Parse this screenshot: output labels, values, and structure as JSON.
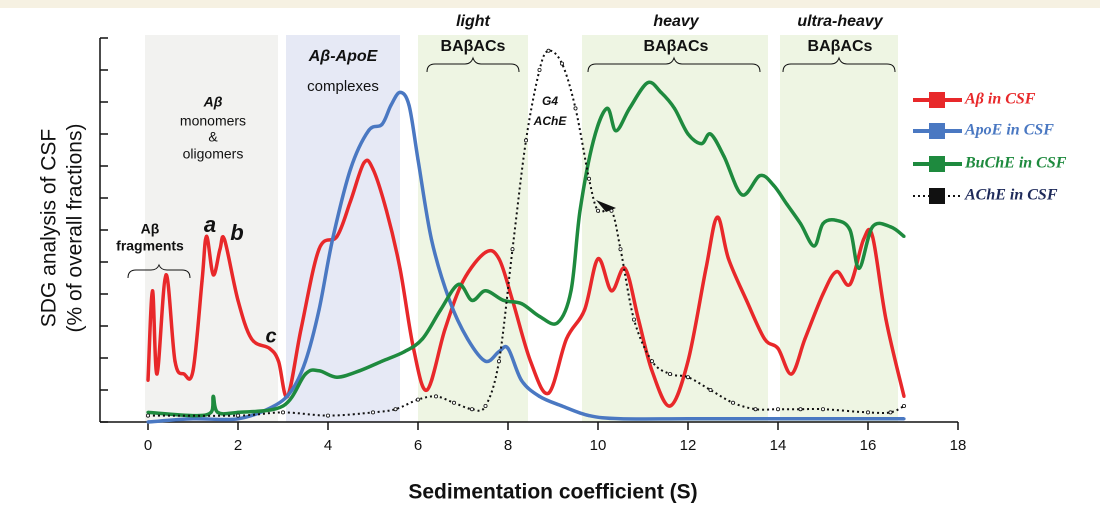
{
  "chart_data": {
    "type": "line",
    "y_label": [
      "SDG analysis of CSF",
      "(% of overall fractions)"
    ],
    "x_label": "Sedimentation coefficient (S)",
    "xlim": [
      0,
      18
    ],
    "xticks": [
      0,
      2,
      4,
      6,
      8,
      10,
      12,
      14,
      16,
      18
    ],
    "ylim": [
      0,
      12
    ],
    "yticks": [
      0,
      1,
      2,
      3,
      4,
      5,
      6,
      7,
      8,
      9,
      10,
      11,
      12
    ],
    "annotations": [
      "Aβ",
      "fragments",
      "a",
      "b",
      "c",
      "Aβ",
      "monomers",
      "&",
      "oligomers",
      "Aβ-ApoE",
      "complexes",
      "light",
      "BAβACs",
      "G4",
      "AChE",
      "heavy",
      "BAβACs",
      "ultra-heavy",
      "BAβACs"
    ],
    "series": [
      {
        "name": "Aβ in CSF",
        "color": "#e8282a",
        "dash": false,
        "x": [
          0,
          0.1,
          0.2,
          0.4,
          0.6,
          0.8,
          1.0,
          1.2,
          1.3,
          1.45,
          1.6,
          1.7,
          2.0,
          2.3,
          2.7,
          2.9,
          3.1,
          3.4,
          3.8,
          4.2,
          4.5,
          4.8,
          5.0,
          5.3,
          5.6,
          5.9,
          6.2,
          6.6,
          7.0,
          7.5,
          7.8,
          8.1,
          8.5,
          8.9,
          9.3,
          9.7,
          10.0,
          10.3,
          10.6,
          10.9,
          11.2,
          11.6,
          12.0,
          12.4,
          12.65,
          12.9,
          13.3,
          13.7,
          14.0,
          14.3,
          14.6,
          15.0,
          15.3,
          15.6,
          15.9,
          16.1,
          16.4,
          16.8
        ],
        "values": [
          1.3,
          4.1,
          1.5,
          4.6,
          1.9,
          1.5,
          1.6,
          4.4,
          5.8,
          4.6,
          5.4,
          5.7,
          3.8,
          2.6,
          2.3,
          1.9,
          0.8,
          2.9,
          5.4,
          5.8,
          6.9,
          8.1,
          7.9,
          6.6,
          4.8,
          2.3,
          1.0,
          2.9,
          4.4,
          5.3,
          5.1,
          3.8,
          1.9,
          0.9,
          2.6,
          3.5,
          5.1,
          4.1,
          4.8,
          3.2,
          1.6,
          0.5,
          1.9,
          4.8,
          6.4,
          5.1,
          3.8,
          2.6,
          2.3,
          1.5,
          2.6,
          4.0,
          4.7,
          4.3,
          5.7,
          5.8,
          3.2,
          0.8
        ]
      },
      {
        "name": "ApoE in CSF",
        "color": "#4a78c2",
        "dash": false,
        "x": [
          0,
          1,
          2,
          2.8,
          3.2,
          3.5,
          3.8,
          4.1,
          4.5,
          4.9,
          5.2,
          5.4,
          5.6,
          5.8,
          6.0,
          6.3,
          6.7,
          7.1,
          7.5,
          7.8,
          8.0,
          8.3,
          8.7,
          9.2,
          9.8,
          10.5,
          12,
          14,
          16,
          16.8
        ],
        "values": [
          0,
          0.1,
          0.1,
          0.5,
          1.0,
          1.9,
          3.5,
          5.7,
          7.9,
          9.1,
          9.3,
          9.9,
          10.3,
          9.9,
          8.2,
          5.7,
          3.8,
          2.6,
          1.9,
          2.2,
          2.3,
          1.3,
          0.8,
          0.5,
          0.2,
          0.1,
          0.1,
          0.1,
          0.1,
          0.1
        ]
      },
      {
        "name": "BuChE in CSF",
        "color": "#1e8a3e",
        "dash": false,
        "x": [
          0,
          1,
          1.4,
          1.45,
          1.55,
          2,
          3,
          3.5,
          3.8,
          4.2,
          4.7,
          5.2,
          5.7,
          6.1,
          6.5,
          6.9,
          7.2,
          7.5,
          7.9,
          8.3,
          8.7,
          9.1,
          9.4,
          9.6,
          9.9,
          10.2,
          10.4,
          10.7,
          11.1,
          11.4,
          11.7,
          12.0,
          12.3,
          12.5,
          12.8,
          13.2,
          13.6,
          13.9,
          14.2,
          14.5,
          14.8,
          15.0,
          15.3,
          15.6,
          15.8,
          16.1,
          16.5,
          16.8
        ],
        "values": [
          0.3,
          0.2,
          0.3,
          0.8,
          0.3,
          0.3,
          0.5,
          1.5,
          1.6,
          1.4,
          1.6,
          1.9,
          2.2,
          2.6,
          3.5,
          4.3,
          3.8,
          4.1,
          3.8,
          3.7,
          3.3,
          3.1,
          4.1,
          6.6,
          8.8,
          9.8,
          9.1,
          9.8,
          10.6,
          10.3,
          9.8,
          9.0,
          8.7,
          9.0,
          8.3,
          7.1,
          7.7,
          7.4,
          6.8,
          6.2,
          5.5,
          6.2,
          6.3,
          6.0,
          4.8,
          6.1,
          6.1,
          5.8
        ]
      },
      {
        "name": "AChE in CSF",
        "color": "#111111",
        "dash": true,
        "x": [
          0,
          2,
          3,
          4,
          5,
          5.5,
          6,
          6.4,
          6.8,
          7.2,
          7.5,
          7.8,
          8.1,
          8.4,
          8.7,
          8.9,
          9.2,
          9.5,
          9.8,
          10.0,
          10.3,
          10.5,
          10.8,
          11.2,
          11.6,
          12,
          12.5,
          13,
          13.5,
          14,
          14.5,
          15,
          16,
          16.5,
          16.8
        ],
        "values": [
          0.2,
          0.2,
          0.3,
          0.2,
          0.3,
          0.4,
          0.7,
          0.8,
          0.6,
          0.4,
          0.5,
          1.9,
          5.4,
          8.8,
          11.0,
          11.6,
          11.2,
          9.8,
          7.6,
          6.6,
          6.6,
          5.4,
          3.2,
          1.9,
          1.5,
          1.4,
          1.0,
          0.6,
          0.4,
          0.4,
          0.4,
          0.4,
          0.3,
          0.3,
          0.5
        ]
      }
    ]
  }
}
